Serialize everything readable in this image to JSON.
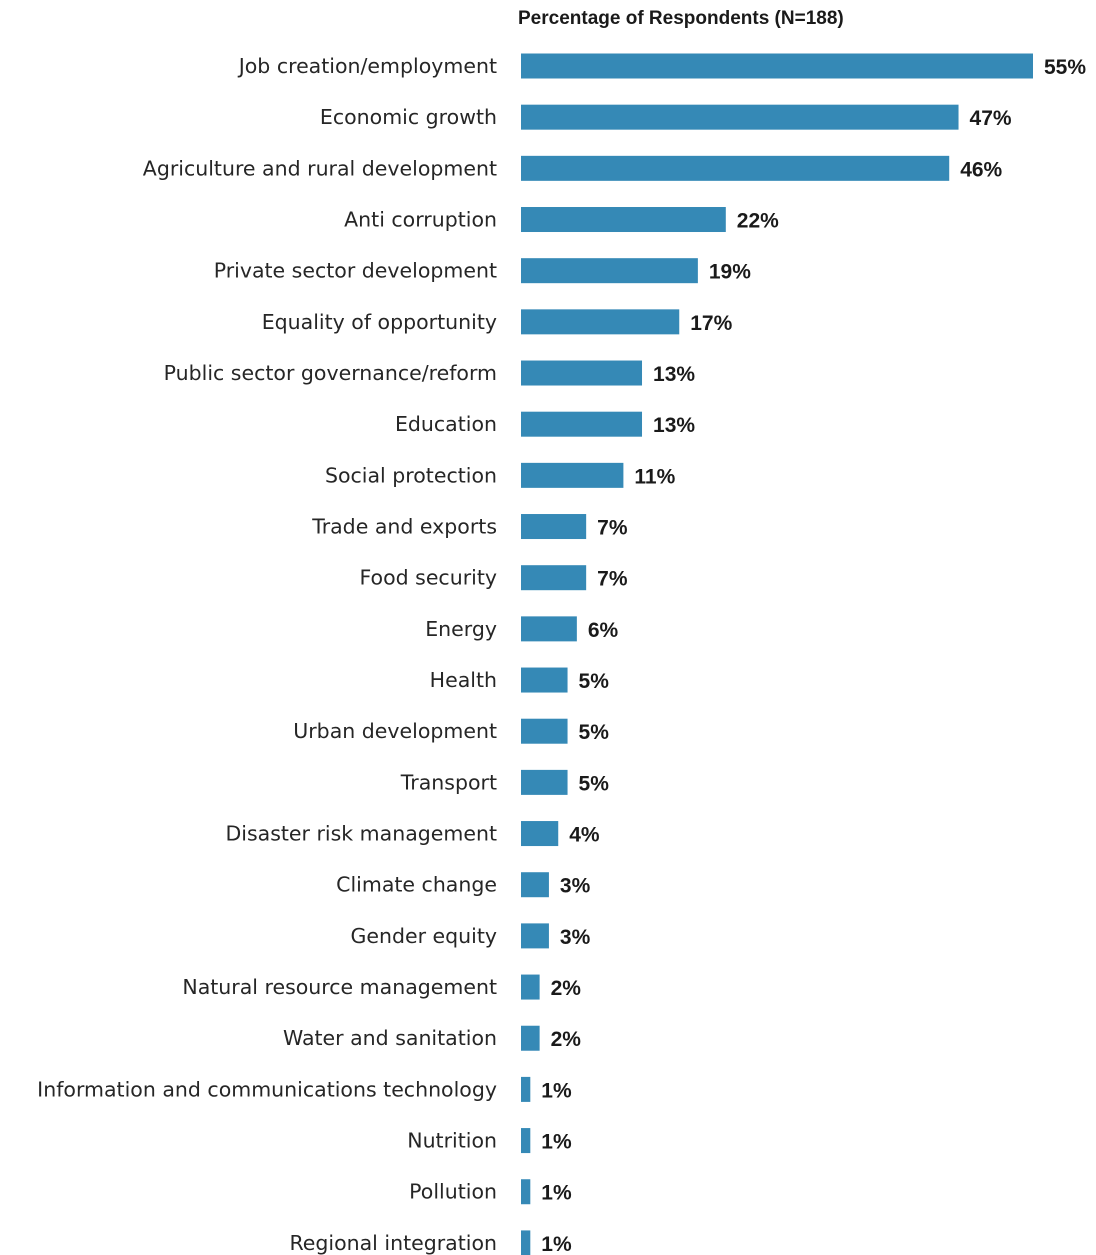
{
  "chart_data": {
    "type": "bar",
    "orientation": "horizontal",
    "title": "Percentage of Respondents (N=188)",
    "xlabel": "",
    "ylabel": "",
    "xlim": [
      0,
      55
    ],
    "grid": false,
    "legend": "none",
    "categories": [
      "Job creation/employment",
      "Economic growth",
      "Agriculture and rural development",
      "Anti corruption",
      "Private sector development",
      "Equality of opportunity",
      "Public sector governance/reform",
      "Education",
      "Social protection",
      "Trade and exports",
      "Food security",
      "Energy",
      "Health",
      "Urban development",
      "Transport",
      "Disaster risk management",
      "Climate change",
      "Gender equity",
      "Natural resource management",
      "Water and sanitation",
      "Information and communications technology",
      "Nutrition",
      "Pollution",
      "Regional integration"
    ],
    "values": [
      55,
      47,
      46,
      22,
      19,
      17,
      13,
      13,
      11,
      7,
      7,
      6,
      5,
      5,
      5,
      4,
      3,
      3,
      2,
      2,
      1,
      1,
      1,
      1
    ],
    "value_labels": [
      "55%",
      "47%",
      "46%",
      "22%",
      "19%",
      "17%",
      "13%",
      "13%",
      "11%",
      "7%",
      "7%",
      "6%",
      "5%",
      "5%",
      "5%",
      "4%",
      "3%",
      "3%",
      "2%",
      "2%",
      "1%",
      "1%",
      "1%",
      "1%"
    ],
    "bar_color": "#3589b6"
  }
}
